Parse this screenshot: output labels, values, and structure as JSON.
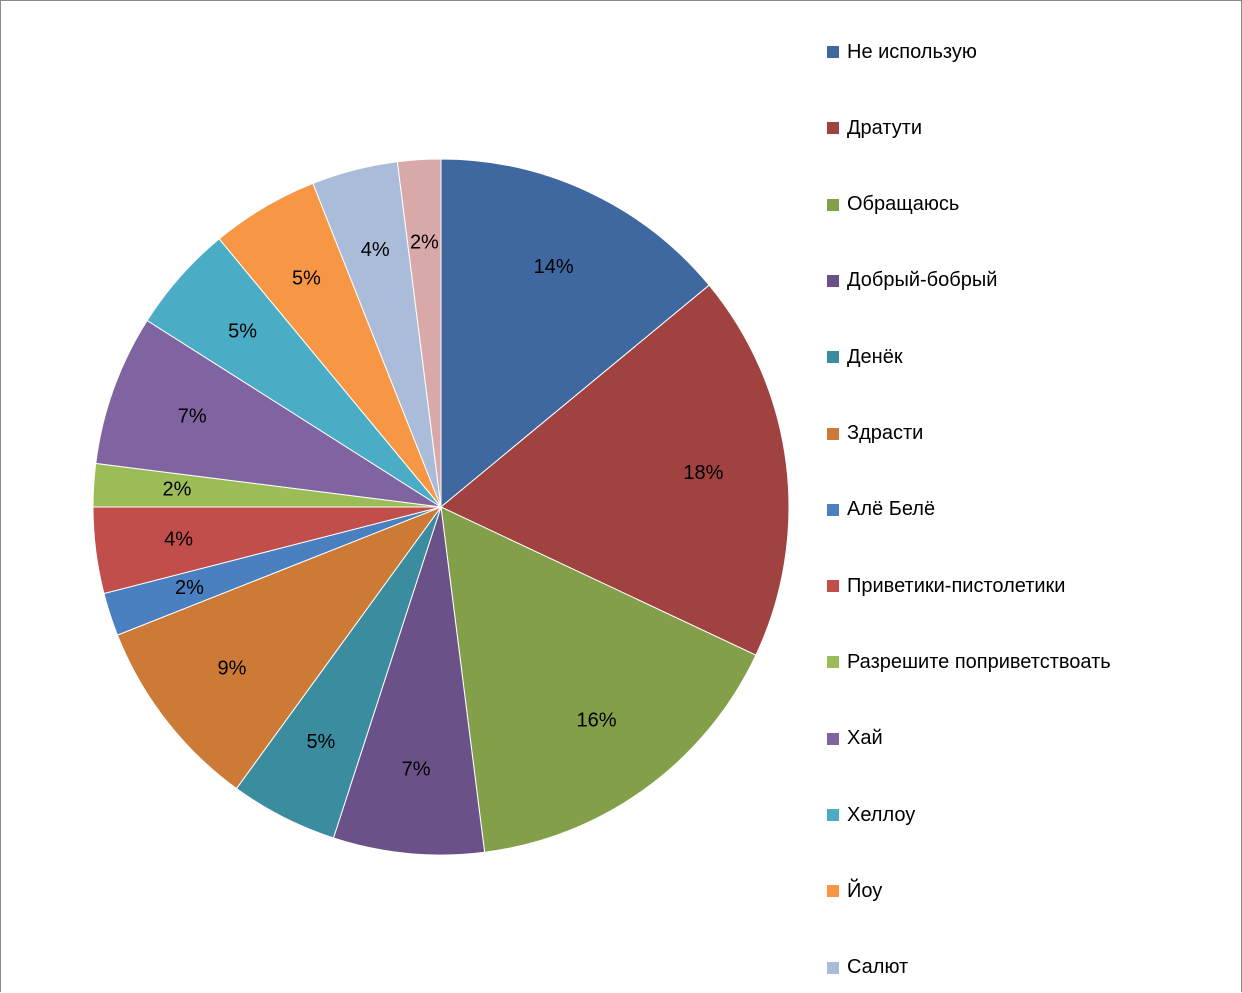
{
  "chart_data": {
    "type": "pie",
    "categories": [
      "Не использую",
      "Дратути",
      "Обращаюсь",
      "Добрый-бобрый",
      "Денёк",
      "Здрасти",
      "Алё Белё",
      "Приветики-пистолетики",
      "Разрешите поприветствоать",
      "Хай",
      "Хеллоу",
      "Йоу",
      "Салют",
      ""
    ],
    "values": [
      14,
      18,
      16,
      7,
      5,
      9,
      2,
      4,
      2,
      7,
      5,
      5,
      4,
      2
    ],
    "data_labels": [
      "14%",
      "18%",
      "16%",
      "7%",
      "5%",
      "9%",
      "2%",
      "4%",
      "2%",
      "7%",
      "5%",
      "5%",
      "4%",
      "2%"
    ],
    "colors": [
      "#4068a0",
      "#a04240",
      "#839f4a",
      "#6a5288",
      "#3c8ca0",
      "#cc7a36",
      "#4a7fc0",
      "#c24e4b",
      "#9cbc57",
      "#8064a2",
      "#4bacc6",
      "#f79645",
      "#abbcdb",
      "#d9a8a8"
    ],
    "legend_visible_count": 13,
    "legend_position": "right",
    "start_angle": "12 o'clock",
    "direction": "clockwise"
  }
}
